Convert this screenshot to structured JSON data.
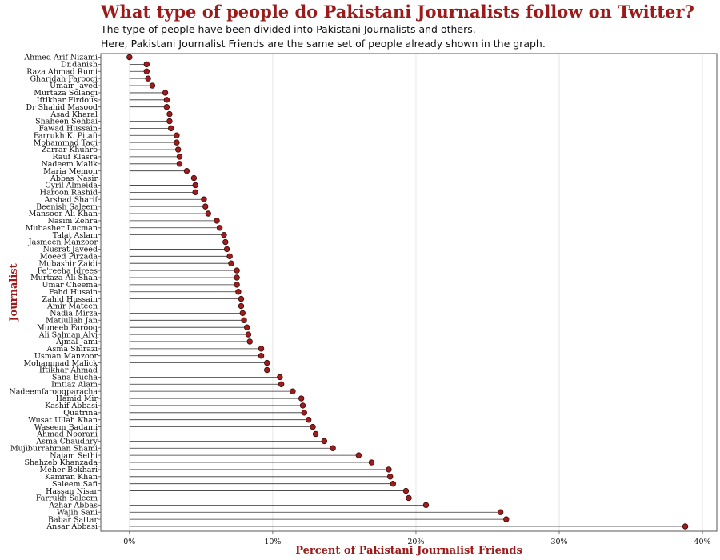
{
  "header": {
    "title": "What type of people do Pakistani Journalists follow on Twitter?",
    "subtitle1": "The type of people have been divided into Pakistani Journalists and others.",
    "subtitle2": "Here, Pakistani Journalist Friends are the same set of people already shown in the graph."
  },
  "chart_data": {
    "type": "lollipop",
    "title": "What type of people do Pakistani Journalists follow on Twitter?",
    "xlabel": "Percent of Pakistani Journalist Friends",
    "ylabel": "Journalist",
    "xlim": [
      -2,
      41
    ],
    "xticks": [
      0,
      10,
      20,
      30,
      40
    ],
    "xtick_labels": [
      "0%",
      "10%",
      "20%",
      "30%",
      "40%"
    ],
    "grid": "vertical",
    "colors": {
      "point": "#a01c1c",
      "point_edge": "#3a0a0a",
      "stem": "#333333",
      "grid": "#e6e6e6",
      "title": "#9b1b1b"
    },
    "categories": [
      "Ahmed Arif Nizami",
      "Dr.danish",
      "Raza Ahmad Rumi",
      "Gharidah Farooqi",
      "Umair Javed",
      "Murtaza Solangi",
      "Iftikhar Firdous",
      "Dr Shahid Masood",
      "Asad Kharal",
      "Shaheen Sehbai",
      "Fawad Hussain",
      "Farrukh K. Pitafi",
      "Mohammad Taqi",
      "Zarrar Khuhro",
      "Rauf Klasra",
      "Nadeem Malik",
      "Maria Memon",
      "Abbas Nasir",
      "Cyril Almeida",
      "Haroon Rashid",
      "Arshad Sharif",
      "Beenish Saleem",
      "Mansoor Ali Khan",
      "Nasim Zehra",
      "Mubasher Lucman",
      "Talat Aslam",
      "Jasmeen Manzoor",
      "Nusrat Javeed",
      "Moeed Pirzada",
      "Mubashir Zaidi",
      "Fe'reeha Idrees",
      "Murtaza Ali Shah",
      "Umar Cheema",
      "Fahd Husain",
      "Zahid Hussain",
      "Amir Mateen",
      "Nadia Mirza",
      "Matiullah Jan",
      "Muneeb Farooq",
      "Ali Salman Alvi",
      "Ajmal Jami",
      "Asma Shirazi",
      "Usman Manzoor",
      "Mohammad Malick",
      "Iftikhar Ahmad",
      "Sana Bucha",
      "Imtiaz Alam",
      "Nadeemfarooqparacha",
      "Hamid Mir",
      "Kashif Abbasi",
      "Quatrina",
      "Wusat Ullah Khan",
      "Waseem Badami",
      "Ahmad Noorani",
      "Asma Chaudhry",
      "Mujiburrahman Shami",
      "Najam Sethi",
      "Shahzeb Khanzada",
      "Meher Bokhari",
      "Kamran Khan",
      "Saleem Safi",
      "Hassan Nisar",
      "Farrukh Saleem",
      "Azhar Abbas",
      "Wajih Sani",
      "Babar Sattar",
      "Ansar Abbasi"
    ],
    "values": [
      0.0,
      1.2,
      1.2,
      1.3,
      1.6,
      2.5,
      2.6,
      2.6,
      2.8,
      2.8,
      2.9,
      3.3,
      3.3,
      3.4,
      3.5,
      3.5,
      4.0,
      4.5,
      4.6,
      4.6,
      5.2,
      5.3,
      5.5,
      6.1,
      6.3,
      6.6,
      6.7,
      6.8,
      7.0,
      7.1,
      7.5,
      7.5,
      7.5,
      7.6,
      7.8,
      7.8,
      7.9,
      8.0,
      8.2,
      8.3,
      8.4,
      9.2,
      9.2,
      9.6,
      9.6,
      10.5,
      10.6,
      11.4,
      12.0,
      12.1,
      12.2,
      12.5,
      12.8,
      13.0,
      13.6,
      14.2,
      16.0,
      16.9,
      18.1,
      18.2,
      18.4,
      19.3,
      19.5,
      20.7,
      25.9,
      26.3,
      38.8
    ]
  }
}
